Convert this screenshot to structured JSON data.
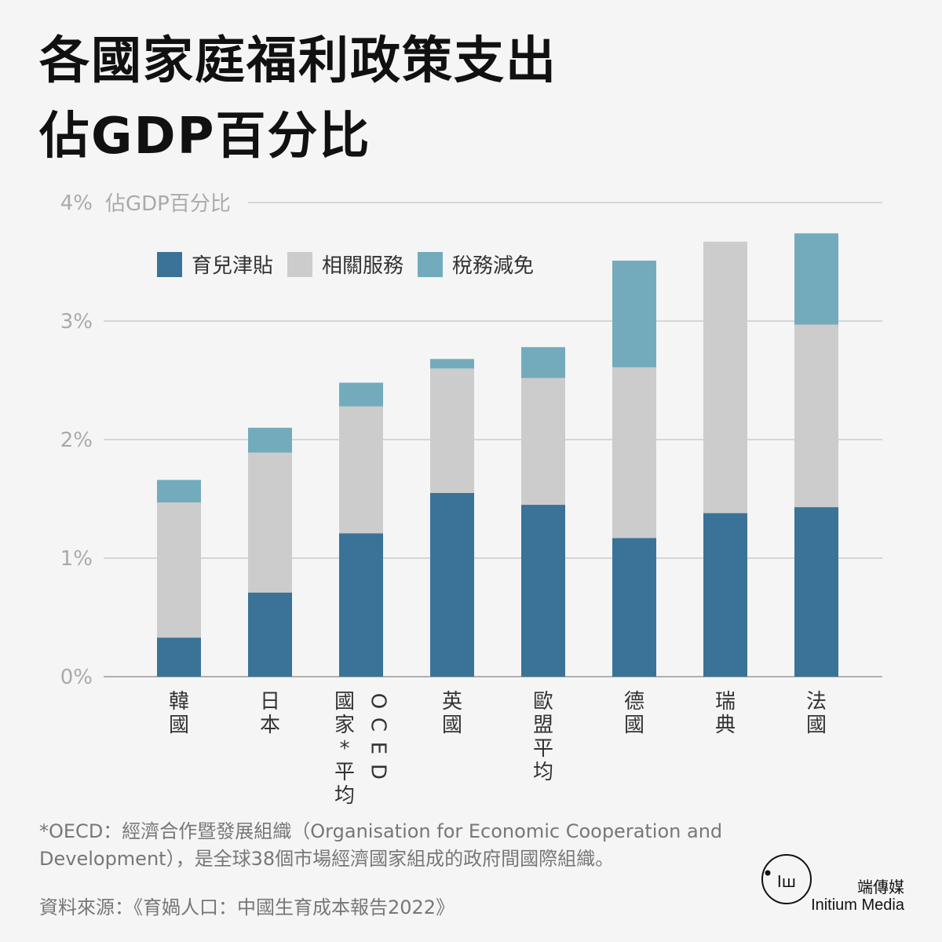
{
  "title_lines": [
    "各國家庭福利政策支出",
    "佔GDP百分比"
  ],
  "chart_data": {
    "type": "bar",
    "stacked": true,
    "categories": [
      "韓國",
      "日本",
      "OCED國家*平均",
      "英國",
      "歐盟平均",
      "德國",
      "瑞典",
      "法國"
    ],
    "series": [
      {
        "name": "育兒津貼",
        "color": "#3a7397",
        "values": [
          0.33,
          0.71,
          1.21,
          1.55,
          1.45,
          1.17,
          1.38,
          1.43
        ]
      },
      {
        "name": "相關服務",
        "color": "#cccccc",
        "values": [
          1.14,
          1.18,
          1.07,
          1.05,
          1.07,
          1.44,
          2.29,
          1.54
        ]
      },
      {
        "name": "稅務減免",
        "color": "#73abbd",
        "values": [
          0.19,
          0.21,
          0.2,
          0.08,
          0.26,
          0.9,
          0,
          0.77
        ]
      }
    ],
    "yticks": [
      0,
      1,
      2,
      3,
      4
    ],
    "ytick_labels": [
      "0%",
      "1%",
      "2%",
      "3%",
      "4%"
    ],
    "ylabel": "佔GDP百分比",
    "ylim": [
      0,
      4
    ],
    "grid": true,
    "legend_position": "top-left"
  },
  "footnote": "*OECD：經濟合作暨發展組織（Organisation for Economic Cooperation and Development），是全球38個市場經濟國家組成的政府間國際組織。",
  "source": "資料來源：《育媧人口：中國生育成本報告2022》",
  "brand": {
    "name_cn": "端傳媒",
    "name_en": "Initium Media"
  }
}
